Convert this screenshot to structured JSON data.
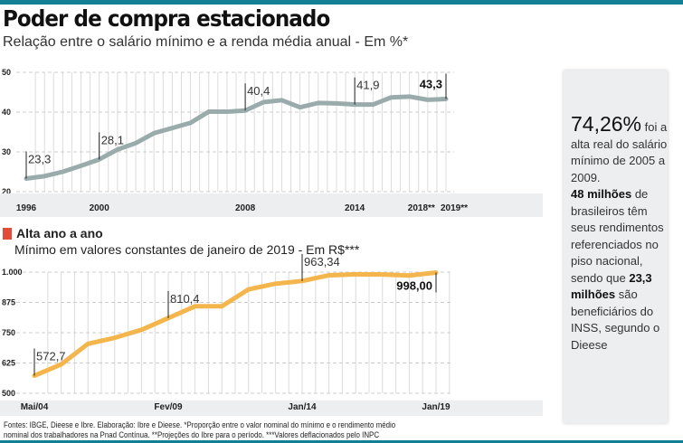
{
  "title": "Poder de compra estacionado",
  "subtitle": "Relação entre o salário mínimo e a renda média anual - Em %*",
  "section2": {
    "title": "Alta ano a ano",
    "subtitle": "Mínimo em valores constantes de janeiro de 2019  - Em R$***"
  },
  "panel": {
    "big": "74,26%",
    "t1": " foi a alta real do salário mínimo de 2005 a 2009.",
    "b2": "48 milhões",
    "t2": " de brasileiros têm seus rendimentos referenciados no piso nacional, sendo que ",
    "b3": "23,3 milhões",
    "t3": " são beneficiários do INSS, segundo o Dieese"
  },
  "footer": {
    "line1": "Fontes: IBGE, Dieese e Ibre. Elaboração: Ibre e Dieese. *Proporção entre o valor nominal do mínimo e o rendimento médio",
    "line2": "nominal dos trabalhadores na Pnad Contínua. **Projeções do Ibre para o período. ***Valores deflacionados pelo INPC"
  },
  "colors": {
    "top_line": "#9aabab",
    "bottom_line": "#f4b54c",
    "accent": "#127f94",
    "marker": "#e34b3b"
  },
  "chart_data": [
    {
      "type": "line",
      "x": [
        1996,
        1997,
        1998,
        1999,
        2000,
        2001,
        2002,
        2003,
        2004,
        2005,
        2006,
        2007,
        2008,
        2009,
        2010,
        2011,
        2012,
        2013,
        2014,
        2015,
        2016,
        2017,
        2018,
        2019
      ],
      "values": [
        23.3,
        23.9,
        25,
        26.5,
        28.1,
        30.6,
        32.2,
        34.7,
        36,
        37.3,
        40.1,
        40.1,
        40.4,
        42.5,
        43,
        41.2,
        42.3,
        42.2,
        41.9,
        41.9,
        43.7,
        43.9,
        43.1,
        43.3
      ],
      "ylim": [
        20,
        50
      ],
      "yticks": [
        "20",
        "30",
        "40",
        "50"
      ],
      "ytick_values": [
        20,
        30,
        40,
        50
      ],
      "xtick_labels": [
        {
          "i": 0,
          "label": "1996"
        },
        {
          "i": 4,
          "label": "2000"
        },
        {
          "i": 12,
          "label": "2008"
        },
        {
          "i": 18,
          "label": "2014"
        },
        {
          "i": 22,
          "label": "2018**"
        },
        {
          "i": 23,
          "label": "2019**"
        }
      ],
      "annotations": [
        {
          "i": 0,
          "label": "23,3"
        },
        {
          "i": 4,
          "label": "28,1"
        },
        {
          "i": 12,
          "label": "40,4"
        },
        {
          "i": 18,
          "label": "41,9"
        },
        {
          "i": 23,
          "label": "43,3",
          "bold": true
        }
      ],
      "grid": true
    },
    {
      "type": "line",
      "x": [
        "Mai/04",
        "2005",
        "2006",
        "2007",
        "2008",
        "Fev/09",
        "2010",
        "2011",
        "2012",
        "2013",
        "Jan/14",
        "2015",
        "2016",
        "2017",
        "2018",
        "Jan/19"
      ],
      "values": [
        572.7,
        619,
        704,
        729,
        762,
        810.4,
        859,
        859,
        929,
        952,
        963.34,
        987,
        991,
        990,
        986,
        998
      ],
      "ylim": [
        500,
        1000
      ],
      "yticks": [
        "500",
        "625",
        "750",
        "875",
        "1.000"
      ],
      "ytick_values": [
        500,
        625,
        750,
        875,
        1000
      ],
      "xtick_labels": [
        {
          "i": 0,
          "label": "Mai/04"
        },
        {
          "i": 5,
          "label": "Fev/09"
        },
        {
          "i": 10,
          "label": "Jan/14"
        },
        {
          "i": 15,
          "label": "Jan/19"
        }
      ],
      "annotations": [
        {
          "i": 0,
          "label": "572,7"
        },
        {
          "i": 5,
          "label": "810,4"
        },
        {
          "i": 10,
          "label": "963,34"
        },
        {
          "i": 15,
          "label": "998,00",
          "bold": true
        }
      ],
      "grid": true
    }
  ]
}
